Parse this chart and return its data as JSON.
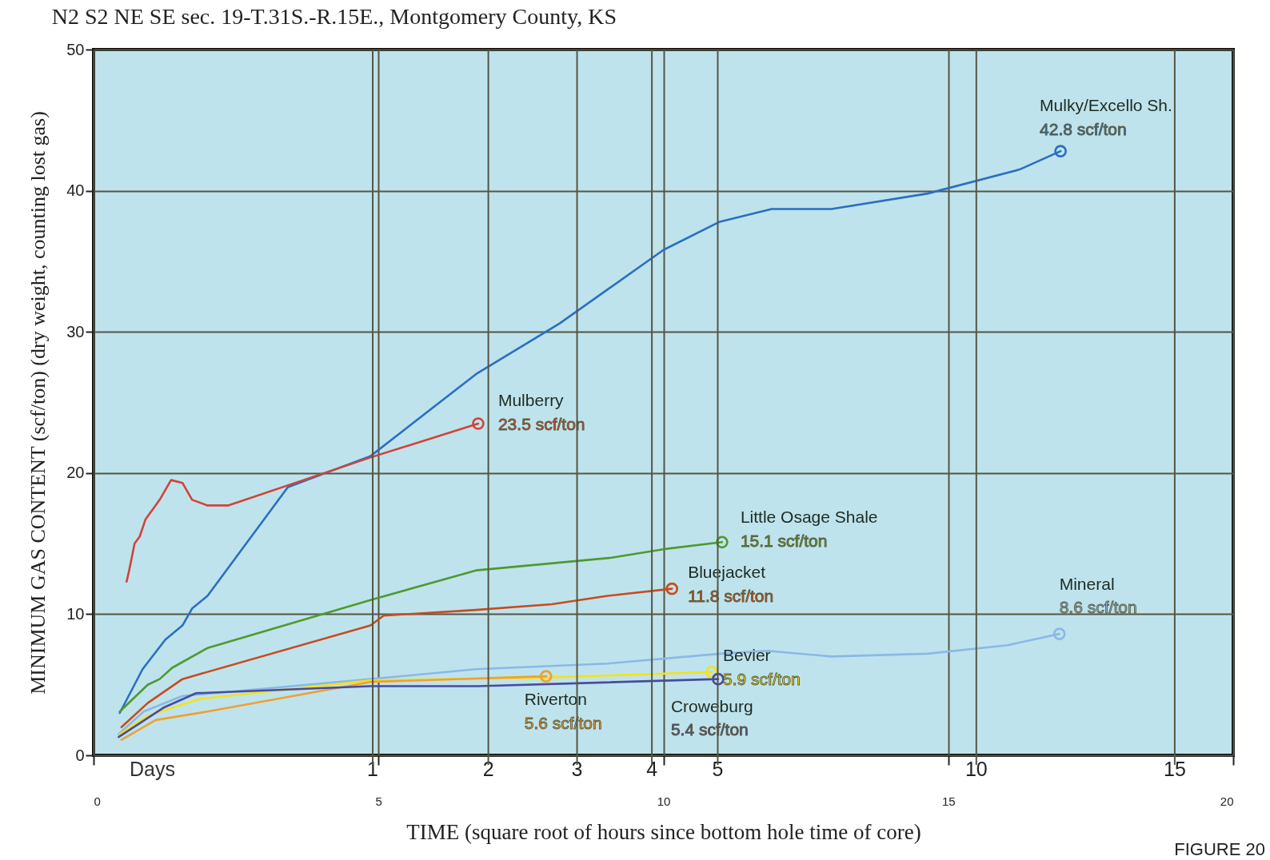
{
  "chart_data": {
    "type": "line",
    "title": "N2 S2 NE SE sec. 19-T.31S.-R.15E., Montgomery County, KS",
    "xlabel": "TIME (square root of hours since bottom hole time of core)",
    "ylabel": "MINIMUM GAS CONTENT (scf/ton) (dry weight, counting lost gas)",
    "xlim": [
      0,
      20
    ],
    "xticks": [
      0,
      5,
      10,
      15,
      20
    ],
    "ylim": [
      0,
      50
    ],
    "yticks": [
      0,
      10,
      20,
      30,
      40,
      50
    ],
    "ref_lines": [
      {
        "axis": "x",
        "value": 4.899
      },
      {
        "axis": "x",
        "value": 6.928
      },
      {
        "axis": "x",
        "value": 8.485
      },
      {
        "axis": "x",
        "value": 9.798
      },
      {
        "axis": "x",
        "value": 10.954
      },
      {
        "axis": "x",
        "value": 15.492
      },
      {
        "axis": "x",
        "value": 18.974
      }
    ],
    "grid": true,
    "line_style": "solid",
    "series": [
      {
        "name": "Mulky/Excello Sh.",
        "color": "#2a6fc0",
        "x": [
          0.46,
          0.86,
          1.26,
          1.56,
          1.73,
          2.0,
          3.41,
          4.86,
          6.71,
          8.18,
          10.0,
          10.99,
          11.9,
          12.95,
          14.64,
          16.25,
          16.97
        ],
        "values": [
          3.0,
          6.1,
          8.2,
          9.2,
          10.4,
          11.3,
          19.0,
          21.2,
          27.0,
          30.6,
          35.8,
          37.8,
          38.7,
          38.7,
          39.8,
          41.5,
          42.8
        ]
      },
      {
        "name": "Mulberry",
        "color": "#d0443a",
        "x": [
          0.58,
          0.63,
          0.72,
          0.81,
          0.91,
          1.16,
          1.36,
          1.56,
          1.73,
          2.0,
          2.36,
          4.86,
          6.75
        ],
        "values": [
          12.3,
          13.2,
          15.0,
          15.5,
          16.7,
          18.1,
          19.5,
          19.3,
          18.1,
          17.7,
          17.7,
          21.1,
          23.5
        ]
      },
      {
        "name": "Little Osage Shale",
        "color": "#4e9a2e",
        "x": [
          0.46,
          0.95,
          1.16,
          1.38,
          2.0,
          4.86,
          6.71,
          9.09,
          10.0,
          11.03
        ],
        "values": [
          3.1,
          5.0,
          5.4,
          6.2,
          7.6,
          11.0,
          13.1,
          14.0,
          14.6,
          15.1
        ]
      },
      {
        "name": "Bluejacket",
        "color": "#c84b1e",
        "x": [
          0.49,
          0.95,
          1.56,
          4.86,
          5.09,
          6.71,
          8.04,
          9.02,
          10.15
        ],
        "values": [
          2.0,
          3.7,
          5.4,
          9.2,
          9.9,
          10.3,
          10.7,
          11.3,
          11.8
        ]
      },
      {
        "name": "Mineral",
        "color": "#8ab8e8",
        "x": [
          0.44,
          0.88,
          1.56,
          4.86,
          6.71,
          9.02,
          11.0,
          11.83,
          12.95,
          14.64,
          16.04,
          16.95
        ],
        "values": [
          1.5,
          3.1,
          4.2,
          5.4,
          6.1,
          6.5,
          7.2,
          7.4,
          7.0,
          7.2,
          7.8,
          8.6
        ]
      },
      {
        "name": "Bevier",
        "color": "#f4e21a",
        "x": [
          0.46,
          0.95,
          1.87,
          4.86,
          7.9,
          10.85
        ],
        "values": [
          1.5,
          2.8,
          4.0,
          5.3,
          5.5,
          5.9
        ]
      },
      {
        "name": "Riverton",
        "color": "#f0a030",
        "x": [
          0.49,
          1.09,
          2.0,
          4.86,
          7.94
        ],
        "values": [
          1.1,
          2.5,
          3.1,
          5.2,
          5.6
        ]
      },
      {
        "name": "Croweburg",
        "color": "#4a4aa0",
        "x": [
          0.44,
          1.24,
          1.8,
          4.86,
          6.75,
          10.96
        ],
        "values": [
          1.3,
          3.4,
          4.4,
          4.9,
          4.9,
          5.4
        ]
      }
    ],
    "annotations": [
      "Days",
      {
        "text": "1",
        "x": 4.899,
        "y": 0
      },
      {
        "text": "2",
        "x": 6.928,
        "y": 0
      },
      {
        "text": "3",
        "x": 8.485,
        "y": 0
      },
      {
        "text": "4",
        "x": 9.798,
        "y": 0
      },
      {
        "text": "5",
        "x": 10.954,
        "y": 0
      },
      {
        "text": "10",
        "x": 15.492,
        "y": 0
      },
      {
        "text": "15",
        "x": 18.974,
        "y": 0
      },
      {
        "text": "42.8 scf/ton",
        "x": 16.97,
        "y": 42.8
      },
      {
        "text": "23.5 scf/ton",
        "x": 6.75,
        "y": 23.5
      },
      {
        "text": "15.1 scf/ton",
        "x": 11.03,
        "y": 15.1
      },
      {
        "text": "11.8 scf/ton",
        "x": 10.15,
        "y": 11.8
      },
      {
        "text": "8.6 scf/ton",
        "x": 16.95,
        "y": 8.6
      },
      {
        "text": "5.9 scf/ton",
        "x": 10.85,
        "y": 5.9
      },
      {
        "text": "5.6 scf/ton",
        "x": 7.94,
        "y": 5.6
      },
      {
        "text": "5.4 scf/ton",
        "x": 10.96,
        "y": 5.4
      },
      "FIGURE 20"
    ]
  }
}
